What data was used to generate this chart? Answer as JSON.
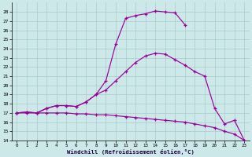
{
  "xlabel": "Windchill (Refroidissement éolien,°C)",
  "xlim": [
    -0.5,
    23.5
  ],
  "ylim": [
    14,
    29
  ],
  "xticks": [
    0,
    1,
    2,
    3,
    4,
    5,
    6,
    7,
    8,
    9,
    10,
    11,
    12,
    13,
    14,
    15,
    16,
    17,
    18,
    19,
    20,
    21,
    22,
    23
  ],
  "yticks": [
    14,
    15,
    16,
    17,
    18,
    19,
    20,
    21,
    22,
    23,
    24,
    25,
    26,
    27,
    28
  ],
  "bg_color": "#cce8e8",
  "grid_color": "#aacccc",
  "line_color": "#990099",
  "curve1_x": [
    0,
    1,
    2,
    3,
    4,
    5,
    6,
    7,
    8,
    9,
    10,
    11,
    12,
    13,
    14,
    15,
    16,
    17
  ],
  "curve1_y": [
    17.0,
    17.1,
    17.0,
    17.5,
    17.8,
    17.8,
    17.7,
    18.2,
    19.0,
    20.5,
    24.5,
    27.3,
    27.6,
    27.8,
    28.1,
    28.0,
    27.9,
    26.6
  ],
  "curve2_x": [
    0,
    1,
    2,
    3,
    4,
    5,
    6,
    7,
    8,
    9,
    10,
    11,
    12,
    13,
    14,
    15,
    16,
    17,
    18,
    19,
    20,
    21,
    22,
    23
  ],
  "curve2_y": [
    17.0,
    17.1,
    17.0,
    17.5,
    17.8,
    17.8,
    17.7,
    18.2,
    19.0,
    19.5,
    20.5,
    21.5,
    22.5,
    23.2,
    23.5,
    23.4,
    22.8,
    22.2,
    21.5,
    21.0,
    17.5,
    15.8,
    16.2,
    14.0
  ],
  "curve3_x": [
    0,
    1,
    2,
    3,
    4,
    5,
    6,
    7,
    8,
    9,
    10,
    11,
    12,
    13,
    14,
    15,
    16,
    17,
    18,
    19,
    20,
    21,
    22,
    23
  ],
  "curve3_y": [
    17.0,
    17.0,
    17.0,
    17.0,
    17.0,
    17.0,
    16.9,
    16.9,
    16.8,
    16.8,
    16.7,
    16.6,
    16.5,
    16.4,
    16.3,
    16.2,
    16.1,
    16.0,
    15.8,
    15.6,
    15.4,
    15.0,
    14.7,
    14.0
  ]
}
